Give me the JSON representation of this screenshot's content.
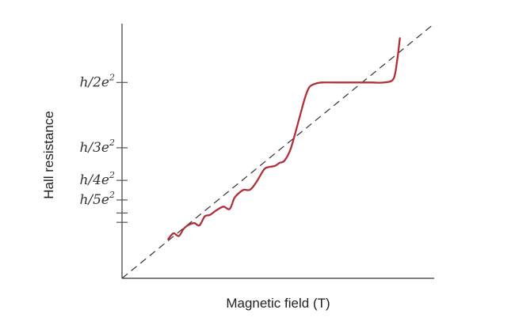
{
  "chart_data": {
    "type": "line",
    "title": "",
    "xlabel": "Magnetic field (T)",
    "ylabel": "Hall resistance",
    "y_ticks": [
      {
        "label": "h/2e",
        "sup": "2",
        "value": 0.5
      },
      {
        "label": "h/3e",
        "sup": "2",
        "value": 0.3333
      },
      {
        "label": "h/4e",
        "sup": "2",
        "value": 0.25
      },
      {
        "label": "h/5e",
        "sup": "2",
        "value": 0.2
      },
      {
        "label": "",
        "sup": "",
        "value": 0.1667
      },
      {
        "label": "",
        "sup": "",
        "value": 0.1429
      }
    ],
    "xlim": [
      0,
      1
    ],
    "ylim": [
      0,
      0.65
    ],
    "grid": false,
    "colors": {
      "hall": "#b0303a",
      "classical": "#333333"
    },
    "series": [
      {
        "style": "dashed",
        "x": [
          0,
          1
        ],
        "y": [
          0,
          0.65
        ]
      },
      {
        "style": "solid",
        "x": [
          0.148,
          0.165,
          0.182,
          0.198,
          0.215,
          0.232,
          0.248,
          0.265,
          0.282,
          0.305,
          0.325,
          0.345,
          0.36,
          0.375,
          0.39,
          0.41,
          0.43,
          0.455,
          0.47,
          0.49,
          0.505,
          0.52,
          0.54,
          0.565,
          0.585,
          0.6,
          0.62,
          0.64,
          0.68,
          0.72,
          0.76,
          0.8,
          0.84,
          0.87,
          0.882,
          0.89
        ],
        "y": [
          0.1,
          0.115,
          0.108,
          0.127,
          0.137,
          0.141,
          0.135,
          0.158,
          0.162,
          0.175,
          0.183,
          0.177,
          0.205,
          0.218,
          0.226,
          0.226,
          0.245,
          0.278,
          0.284,
          0.287,
          0.295,
          0.3,
          0.33,
          0.4,
          0.458,
          0.488,
          0.497,
          0.5,
          0.5,
          0.5,
          0.5,
          0.5,
          0.5,
          0.51,
          0.56,
          0.613
        ]
      }
    ]
  }
}
